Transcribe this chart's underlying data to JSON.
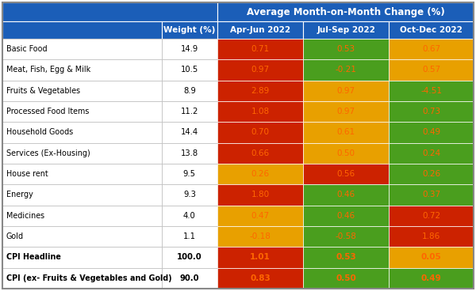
{
  "rows": [
    {
      "label": "Basic Food",
      "weight": "14.9",
      "vals": [
        "0.71",
        "0.53",
        "0.67"
      ],
      "colors": [
        "#CC2200",
        "#4A9E1E",
        "#E8A000"
      ],
      "bold": false
    },
    {
      "label": "Meat, Fish, Egg & Milk",
      "weight": "10.5",
      "vals": [
        "0.97",
        "-0.21",
        "0.57"
      ],
      "colors": [
        "#CC2200",
        "#4A9E1E",
        "#E8A000"
      ],
      "bold": false
    },
    {
      "label": "Fruits & Vegetables",
      "weight": "8.9",
      "vals": [
        "2.89",
        "0.97",
        "-4.51"
      ],
      "colors": [
        "#CC2200",
        "#E8A000",
        "#4A9E1E"
      ],
      "bold": false
    },
    {
      "label": "Processed Food Items",
      "weight": "11.2",
      "vals": [
        "1.08",
        "0.97",
        "0.73"
      ],
      "colors": [
        "#CC2200",
        "#E8A000",
        "#4A9E1E"
      ],
      "bold": false
    },
    {
      "label": "Household Goods",
      "weight": "14.4",
      "vals": [
        "0.70",
        "0.61",
        "0.49"
      ],
      "colors": [
        "#CC2200",
        "#E8A000",
        "#4A9E1E"
      ],
      "bold": false
    },
    {
      "label": "Services (Ex-Housing)",
      "weight": "13.8",
      "vals": [
        "0.66",
        "0.50",
        "0.24"
      ],
      "colors": [
        "#CC2200",
        "#E8A000",
        "#4A9E1E"
      ],
      "bold": false
    },
    {
      "label": "House rent",
      "weight": "9.5",
      "vals": [
        "0.26",
        "0.56",
        "0.26"
      ],
      "colors": [
        "#E8A000",
        "#CC2200",
        "#4A9E1E"
      ],
      "bold": false
    },
    {
      "label": "Energy",
      "weight": "9.3",
      "vals": [
        "1.80",
        "0.46",
        "0.37"
      ],
      "colors": [
        "#CC2200",
        "#4A9E1E",
        "#4A9E1E"
      ],
      "bold": false
    },
    {
      "label": "Medicines",
      "weight": "4.0",
      "vals": [
        "0.47",
        "0.46",
        "0.72"
      ],
      "colors": [
        "#E8A000",
        "#4A9E1E",
        "#CC2200"
      ],
      "bold": false
    },
    {
      "label": "Gold",
      "weight": "1.1",
      "vals": [
        "-0.18",
        "-0.58",
        "1.86"
      ],
      "colors": [
        "#E8A000",
        "#4A9E1E",
        "#CC2200"
      ],
      "bold": false
    },
    {
      "label": "CPI Headline",
      "weight": "100.0",
      "vals": [
        "1.01",
        "0.53",
        "0.05"
      ],
      "colors": [
        "#CC2200",
        "#4A9E1E",
        "#E8A000"
      ],
      "bold": true
    },
    {
      "label": "CPI (ex- Fruits & Vegetables and Gold)",
      "weight": "90.0",
      "vals": [
        "0.83",
        "0.50",
        "0.49"
      ],
      "colors": [
        "#CC2200",
        "#4A9E1E",
        "#4A9E1E"
      ],
      "bold": true
    }
  ],
  "header_bg": "#1B5EB8",
  "header_text": "#FFFFFF",
  "col_header": "Average Month-on-Month Change (%)",
  "col_names": [
    "Weight (%)",
    "Apr-Jun 2022",
    "Jul-Sep 2022",
    "Oct-Dec 2022"
  ],
  "val_text_color": "#FF6600",
  "border_color": "#999999",
  "label_border": "#BBBBBB",
  "fig_w": 6.0,
  "fig_h": 3.68,
  "dpi": 100
}
